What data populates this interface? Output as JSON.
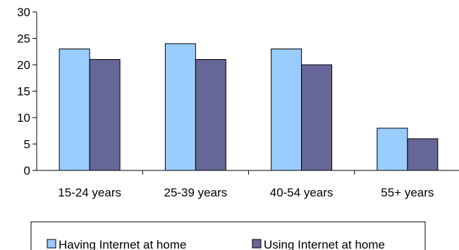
{
  "chart_data": {
    "type": "bar",
    "title": "",
    "xlabel": "",
    "ylabel": "",
    "categories": [
      "15-24 years",
      "25-39 years",
      "40-54 years",
      "55+ years"
    ],
    "series": [
      {
        "name": "Having Internet at home",
        "values": [
          23,
          24,
          23,
          8
        ],
        "color": "#99ccff"
      },
      {
        "name": "Using Internet at home",
        "values": [
          21,
          21,
          20,
          6
        ],
        "color": "#666699"
      }
    ],
    "ylim": [
      0,
      30
    ],
    "yticks": [
      "0",
      "5",
      "10",
      "15",
      "20",
      "25",
      "30"
    ],
    "grid": false,
    "legend_position": "bottom"
  }
}
